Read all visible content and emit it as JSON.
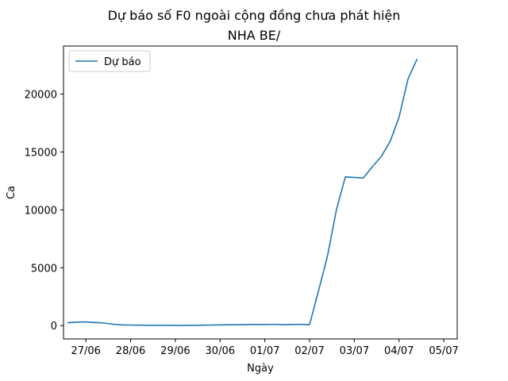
{
  "chart_data": {
    "type": "line",
    "title": "Dự báo số F0 ngoài cộng đồng chưa phát hiện",
    "subtitle": "NHA BE/",
    "xlabel": "Ngày",
    "ylabel": "Ca",
    "x_tick_labels": [
      "27/06",
      "28/06",
      "29/06",
      "30/06",
      "01/07",
      "02/07",
      "03/07",
      "04/07",
      "05/07"
    ],
    "y_ticks": [
      0,
      5000,
      10000,
      15000,
      20000
    ],
    "xlim": [
      -0.5,
      8.3
    ],
    "ylim": [
      -1150,
      24150
    ],
    "legend_position": "top-left",
    "grid": false,
    "series": [
      {
        "name": "Dự báo",
        "color": "#1f77b4",
        "x": [
          -0.4,
          -0.2,
          0.0,
          0.2,
          0.4,
          0.6,
          0.8,
          1.0,
          1.2,
          1.4,
          1.6,
          1.8,
          2.0,
          2.2,
          2.4,
          2.6,
          2.8,
          3.0,
          3.2,
          3.4,
          3.6,
          3.8,
          4.0,
          4.2,
          4.4,
          4.6,
          4.8,
          5.0,
          5.2,
          5.4,
          5.6,
          5.8,
          6.0,
          6.2,
          6.4,
          6.6,
          6.8,
          7.0,
          7.2,
          7.4
        ],
        "y": [
          250,
          300,
          320,
          270,
          230,
          120,
          60,
          50,
          40,
          30,
          30,
          25,
          20,
          20,
          30,
          40,
          50,
          60,
          70,
          80,
          90,
          100,
          100,
          110,
          90,
          100,
          110,
          80,
          3000,
          6000,
          10000,
          12850,
          12800,
          12750,
          13700,
          14600,
          15900,
          18000,
          21300,
          23000
        ]
      }
    ]
  }
}
